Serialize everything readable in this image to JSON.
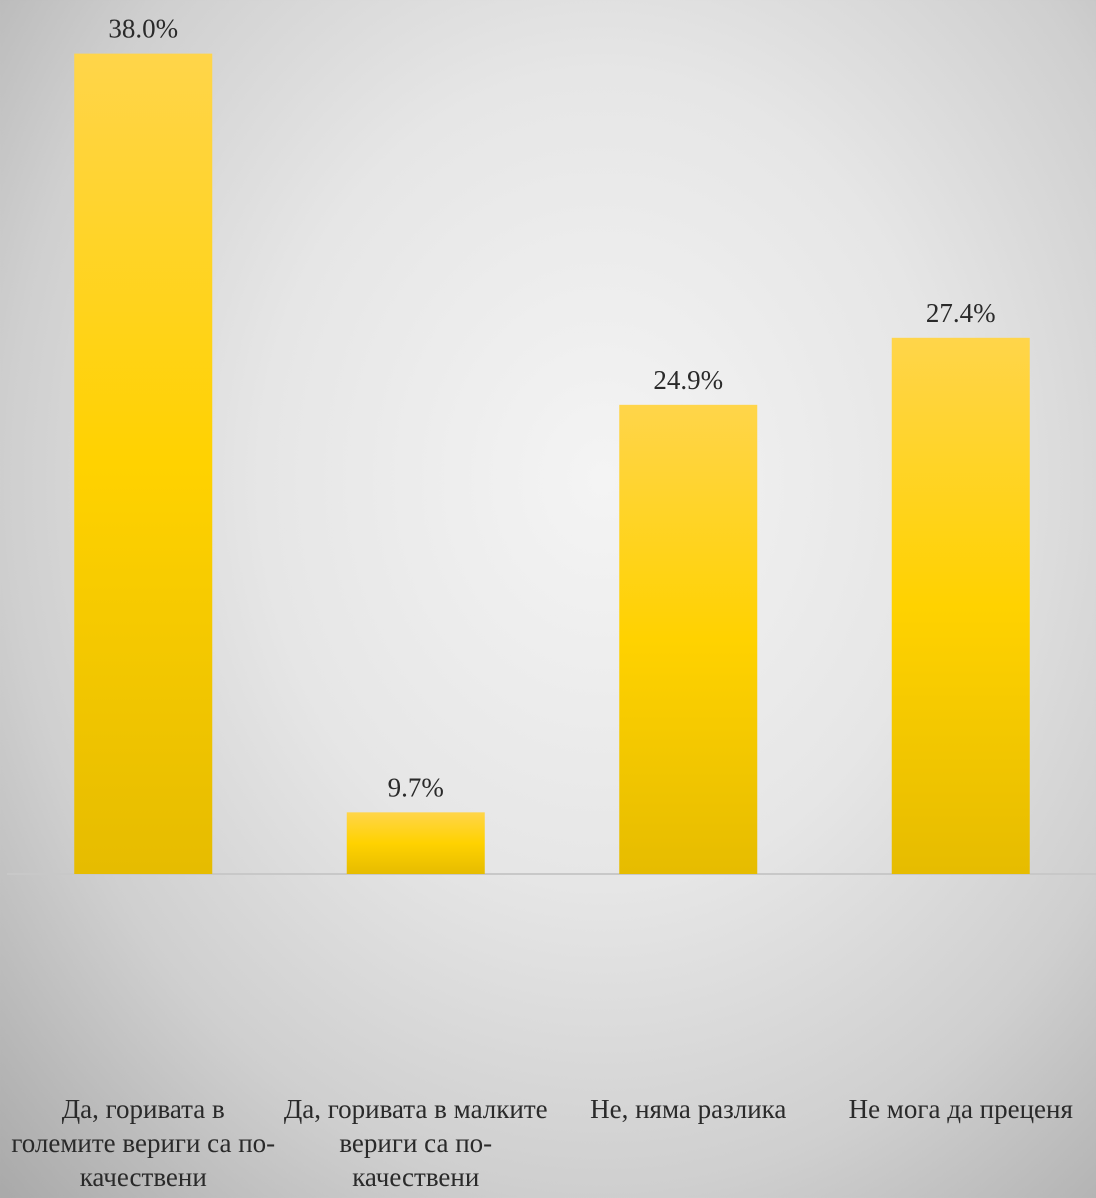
{
  "chart_data": {
    "type": "bar",
    "categories": [
      "Да, горивата в големите вериги са по-качествени",
      "Да, горивата в малките вериги са по-качествени",
      "Не, няма разлика",
      "Не мога да преценя"
    ],
    "values": [
      38.0,
      9.7,
      24.9,
      27.4
    ],
    "value_labels": [
      "38.0%",
      "9.7%",
      "24.9%",
      "27.4%"
    ],
    "color": "#ffd200",
    "ylim": [
      7.4,
      40
    ]
  }
}
